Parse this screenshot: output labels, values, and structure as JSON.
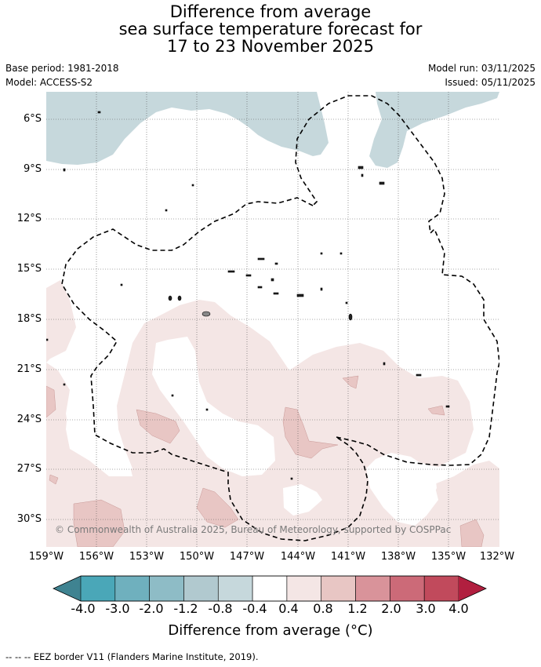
{
  "title": {
    "line1": "Difference from average",
    "line2": "sea surface temperature forecast for",
    "line3": "17 to 23 November 2025"
  },
  "meta": {
    "base_period": "Base period: 1981-2018",
    "model": "Model: ACCESS-S2",
    "model_run": "Model run: 03/11/2025",
    "issued": "Issued: 05/11/2025"
  },
  "map": {
    "lat_labels": [
      "6°S",
      "9°S",
      "12°S",
      "15°S",
      "18°S",
      "21°S",
      "24°S",
      "27°S",
      "30°S"
    ],
    "lon_labels": [
      "159°W",
      "156°W",
      "153°W",
      "150°W",
      "147°W",
      "144°W",
      "141°W",
      "138°W",
      "135°W",
      "132°W"
    ],
    "copyright": "© Commonwealth of Australia 2025, Bureau of Meteorology, supported by COSPPac"
  },
  "colorbar": {
    "title": "Difference from average (°C)",
    "ticks": [
      "-4.0",
      "-3.0",
      "-2.0",
      "-1.2",
      "-0.8",
      "-0.4",
      "0.4",
      "0.8",
      "1.2",
      "2.0",
      "3.0",
      "4.0"
    ],
    "colors": [
      "#3f8391",
      "#4aa7b8",
      "#6fb0be",
      "#8ebcc6",
      "#b1c9cf",
      "#c6d8dc",
      "#ffffff",
      "#f4e6e5",
      "#e8c6c4",
      "#d9939a",
      "#cc6a78",
      "#c14a5c",
      "#b11f3f"
    ]
  },
  "footer": "-- -- -- EEZ border V11 (Flanders Marine Institute, 2019)."
}
